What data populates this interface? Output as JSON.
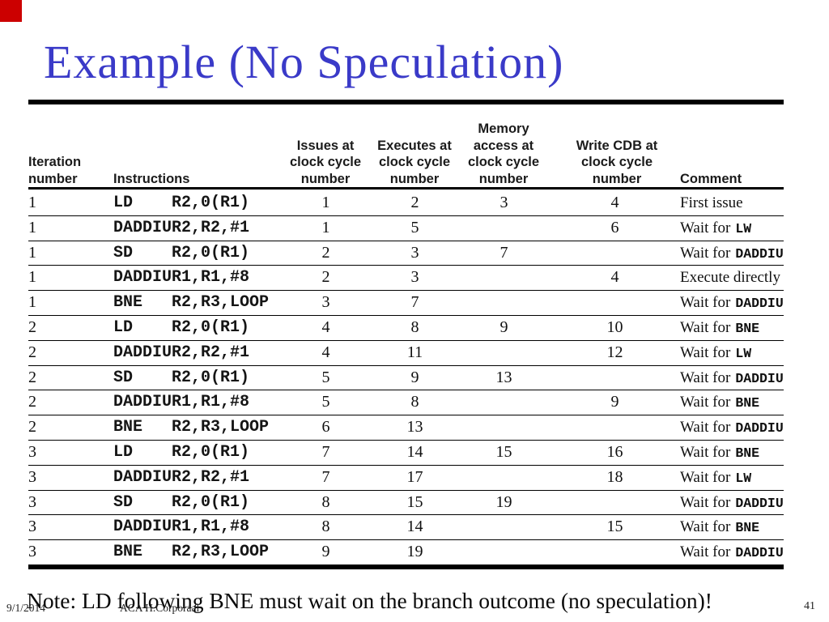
{
  "slide": {
    "title": "Example (No Speculation)",
    "note": "Note: LD following BNE must wait on the branch outcome (no speculation)!",
    "footer": {
      "date": "9/1/2014",
      "author": "ACA H.Corporaal",
      "page": "41"
    },
    "colors": {
      "title": "#3a3ac8",
      "accent_square": "#cc0000"
    }
  },
  "table": {
    "headers": {
      "iteration": "Iteration\nnumber",
      "instructions": "Instructions",
      "issues": "Issues at\nclock cycle\nnumber",
      "executes": "Executes at\nclock cycle\nnumber",
      "memory": "Memory\naccess at\nclock cycle\nnumber",
      "cdb": "Write CDB at\nclock cycle\nnumber",
      "comment": "Comment"
    },
    "rows": [
      {
        "iter": "1",
        "opcode": "LD",
        "operands": "R2,0(R1)",
        "issues": "1",
        "executes": "2",
        "memory": "3",
        "cdb": "4",
        "comment_text": "First issue",
        "comment_code": ""
      },
      {
        "iter": "1",
        "opcode": "DADDIU",
        "operands": "R2,R2,#1",
        "issues": "1",
        "executes": "5",
        "memory": "",
        "cdb": "6",
        "comment_text": "Wait for",
        "comment_code": "LW"
      },
      {
        "iter": "1",
        "opcode": "SD",
        "operands": "R2,0(R1)",
        "issues": "2",
        "executes": "3",
        "memory": "7",
        "cdb": "",
        "comment_text": "Wait for",
        "comment_code": "DADDIU"
      },
      {
        "iter": "1",
        "opcode": "DADDIU",
        "operands": "R1,R1,#8",
        "issues": "2",
        "executes": "3",
        "memory": "",
        "cdb": "4",
        "comment_text": "Execute directly",
        "comment_code": ""
      },
      {
        "iter": "1",
        "opcode": "BNE",
        "operands": "R2,R3,LOOP",
        "issues": "3",
        "executes": "7",
        "memory": "",
        "cdb": "",
        "comment_text": "Wait for",
        "comment_code": "DADDIU"
      },
      {
        "iter": "2",
        "opcode": "LD",
        "operands": "R2,0(R1)",
        "issues": "4",
        "executes": "8",
        "memory": "9",
        "cdb": "10",
        "comment_text": "Wait for",
        "comment_code": "BNE"
      },
      {
        "iter": "2",
        "opcode": "DADDIU",
        "operands": "R2,R2,#1",
        "issues": "4",
        "executes": "11",
        "memory": "",
        "cdb": "12",
        "comment_text": "Wait for",
        "comment_code": "LW"
      },
      {
        "iter": "2",
        "opcode": "SD",
        "operands": "R2,0(R1)",
        "issues": "5",
        "executes": "9",
        "memory": "13",
        "cdb": "",
        "comment_text": "Wait for",
        "comment_code": "DADDIU"
      },
      {
        "iter": "2",
        "opcode": "DADDIU",
        "operands": "R1,R1,#8",
        "issues": "5",
        "executes": "8",
        "memory": "",
        "cdb": "9",
        "comment_text": "Wait for",
        "comment_code": "BNE"
      },
      {
        "iter": "2",
        "opcode": "BNE",
        "operands": "R2,R3,LOOP",
        "issues": "6",
        "executes": "13",
        "memory": "",
        "cdb": "",
        "comment_text": "Wait for",
        "comment_code": "DADDIU"
      },
      {
        "iter": "3",
        "opcode": "LD",
        "operands": "R2,0(R1)",
        "issues": "7",
        "executes": "14",
        "memory": "15",
        "cdb": "16",
        "comment_text": "Wait for",
        "comment_code": "BNE"
      },
      {
        "iter": "3",
        "opcode": "DADDIU",
        "operands": "R2,R2,#1",
        "issues": "7",
        "executes": "17",
        "memory": "",
        "cdb": "18",
        "comment_text": "Wait for",
        "comment_code": "LW"
      },
      {
        "iter": "3",
        "opcode": "SD",
        "operands": "R2,0(R1)",
        "issues": "8",
        "executes": "15",
        "memory": "19",
        "cdb": "",
        "comment_text": "Wait for",
        "comment_code": "DADDIU"
      },
      {
        "iter": "3",
        "opcode": "DADDIU",
        "operands": "R1,R1,#8",
        "issues": "8",
        "executes": "14",
        "memory": "",
        "cdb": "15",
        "comment_text": "Wait for",
        "comment_code": "BNE"
      },
      {
        "iter": "3",
        "opcode": "BNE",
        "operands": "R2,R3,LOOP",
        "issues": "9",
        "executes": "19",
        "memory": "",
        "cdb": "",
        "comment_text": "Wait for",
        "comment_code": "DADDIU"
      }
    ]
  }
}
